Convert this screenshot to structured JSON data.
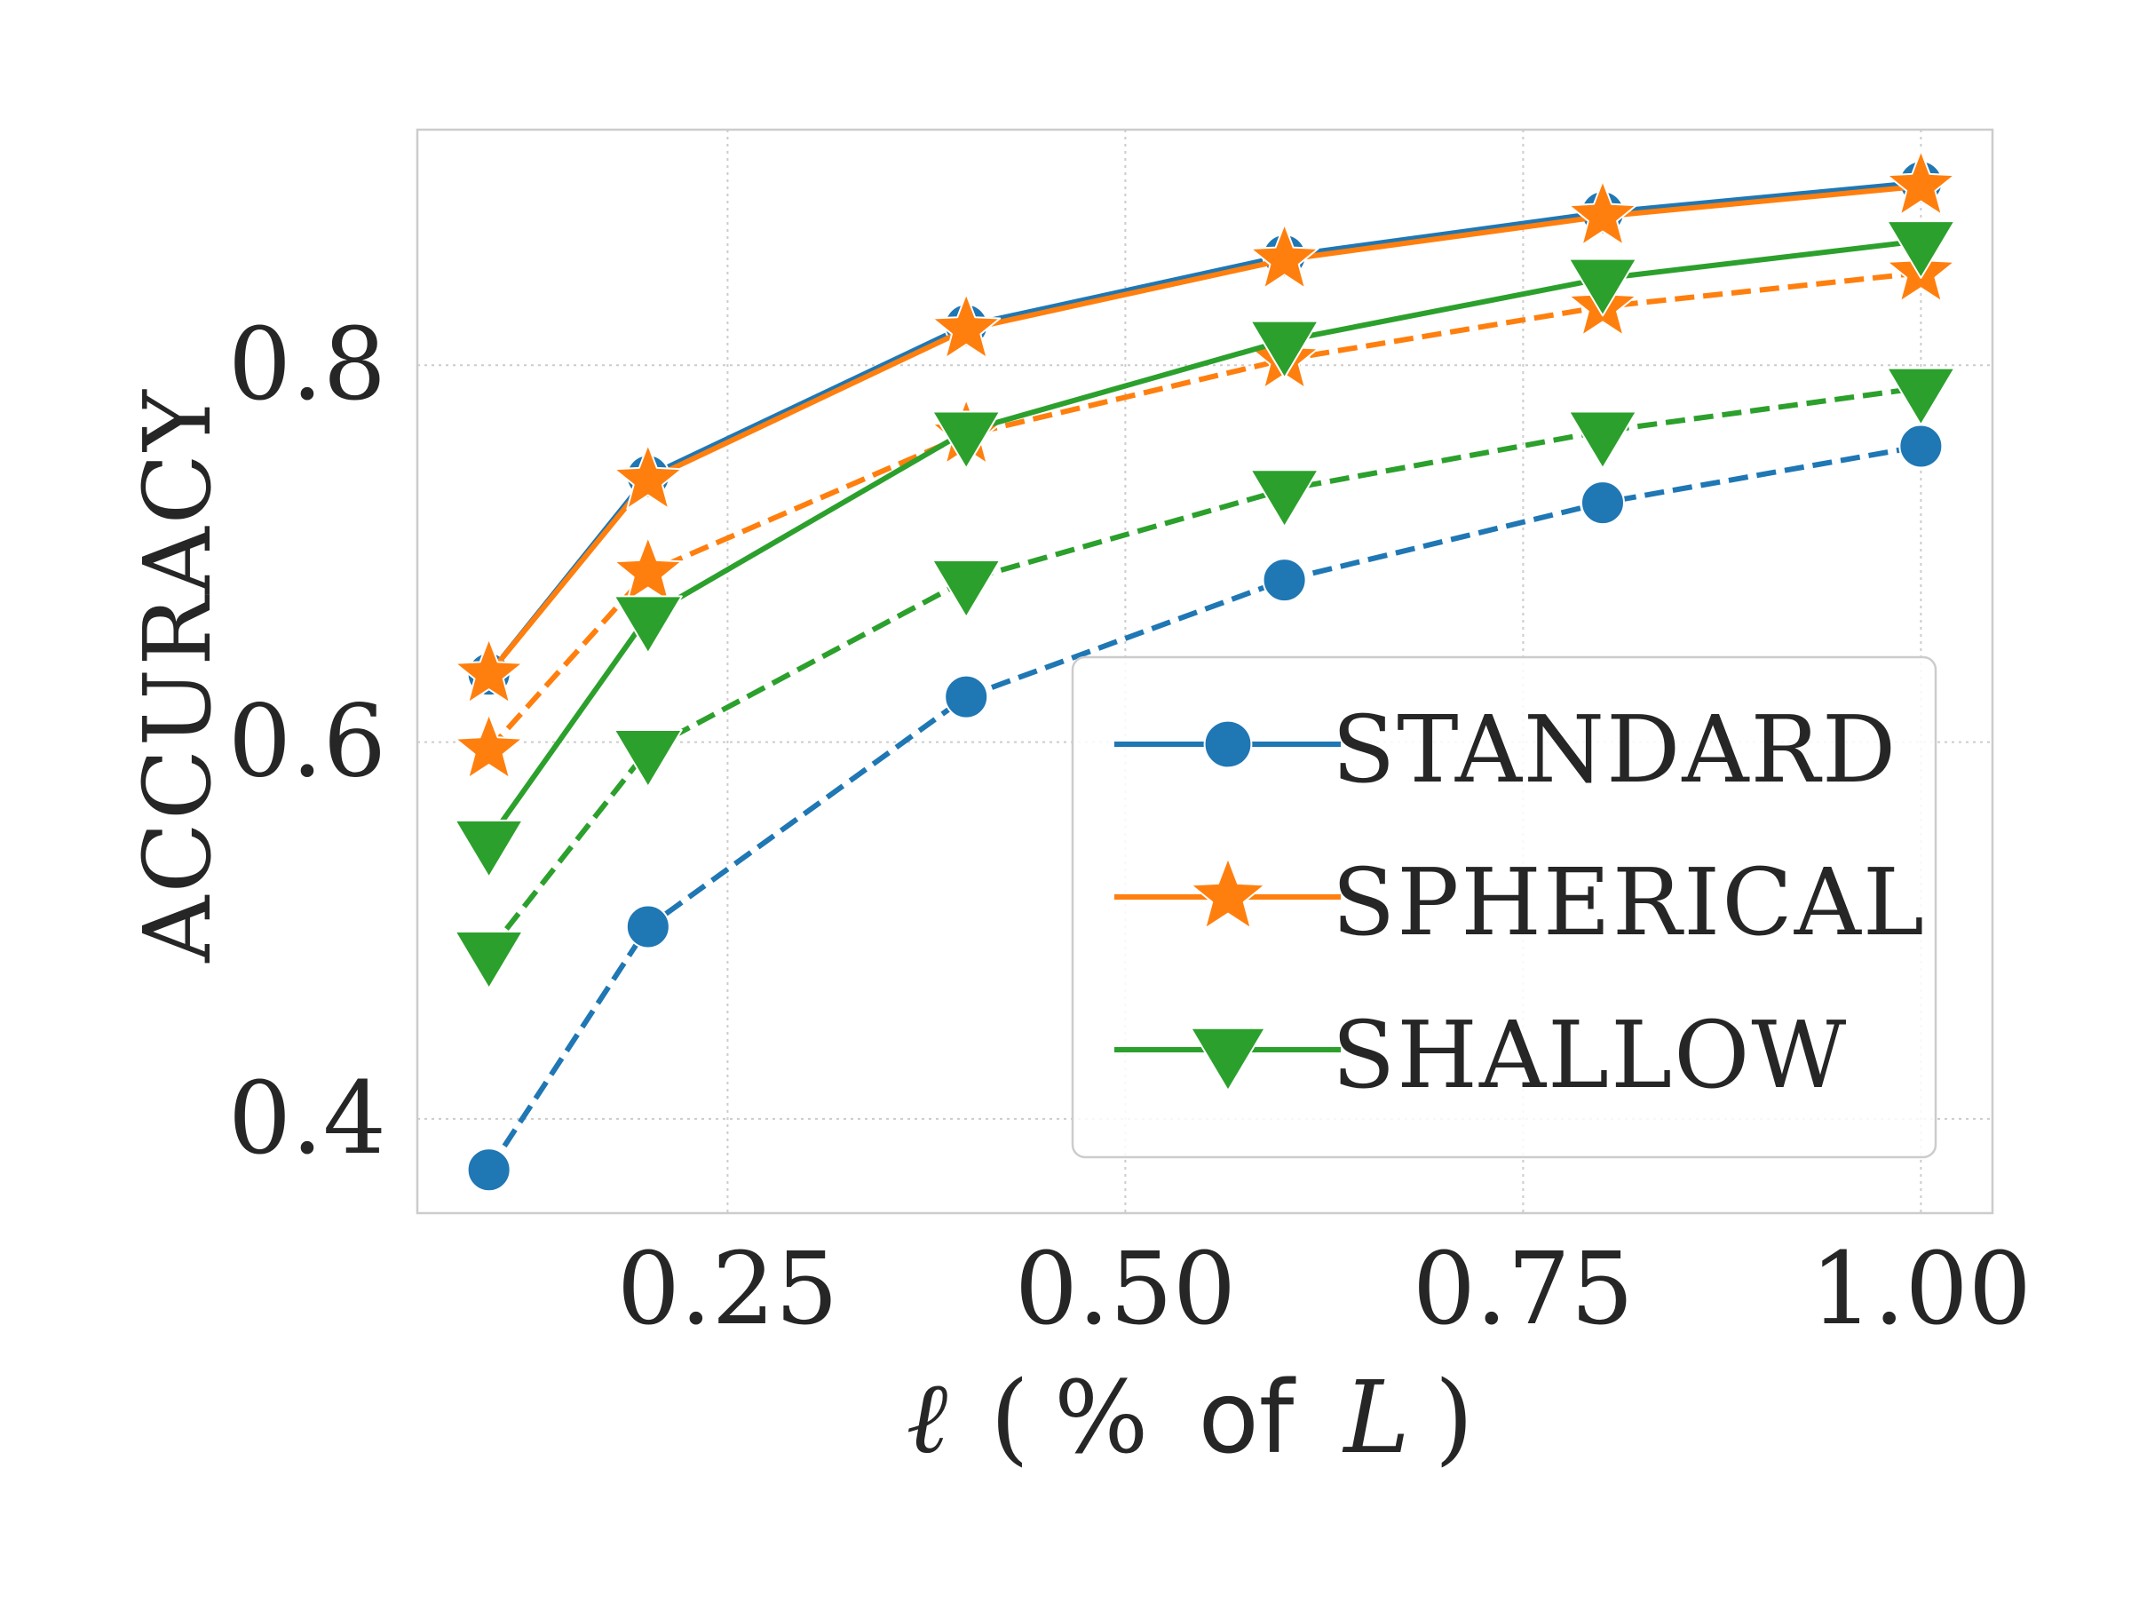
{
  "chart_data": {
    "type": "line",
    "title": "",
    "xlabel": "ℓ (% of L)",
    "xlabel_parts": {
      "symbol": "ℓ",
      "open": "(",
      "percent": "%",
      "of": "of",
      "L": "L",
      "close": ")"
    },
    "ylabel": "ACCURACY",
    "xlim": [
      0.055,
      1.045
    ],
    "ylim": [
      0.35,
      0.925
    ],
    "xticks": [
      0.25,
      0.5,
      0.75,
      1.0
    ],
    "xtick_labels": [
      "0.25",
      "0.50",
      "0.75",
      "1.00"
    ],
    "yticks": [
      0.4,
      0.6,
      0.8
    ],
    "ytick_labels": [
      "0.4",
      "0.6",
      "0.8"
    ],
    "grid": true,
    "legend_position": "lower-right",
    "x": [
      0.1,
      0.2,
      0.4,
      0.6,
      0.8,
      1.0
    ],
    "series": [
      {
        "name": "Standard",
        "legend_label": "STANDARD",
        "color": "#1f77b4",
        "marker": "circle",
        "linestyle": "solid",
        "values": [
          0.636,
          0.741,
          0.821,
          0.858,
          0.881,
          0.897
        ]
      },
      {
        "name": "Spherical",
        "legend_label": "SPHERICAL",
        "color": "#ff7f0e",
        "marker": "star",
        "linestyle": "solid",
        "values": [
          0.636,
          0.739,
          0.819,
          0.856,
          0.879,
          0.895
        ]
      },
      {
        "name": "Shallow",
        "legend_label": "SHALLOW",
        "color": "#2ca02c",
        "marker": "triangle-down",
        "linestyle": "solid",
        "values": [
          0.548,
          0.667,
          0.765,
          0.813,
          0.846,
          0.866
        ]
      },
      {
        "name": "Standard (dashed)",
        "color": "#1f77b4",
        "marker": "circle",
        "linestyle": "dashed",
        "values": [
          0.373,
          0.502,
          0.624,
          0.686,
          0.727,
          0.757
        ]
      },
      {
        "name": "Spherical (dashed)",
        "color": "#ff7f0e",
        "marker": "star",
        "linestyle": "dashed",
        "values": [
          0.596,
          0.69,
          0.763,
          0.803,
          0.831,
          0.849
        ]
      },
      {
        "name": "Shallow (dashed)",
        "color": "#2ca02c",
        "marker": "triangle-down",
        "linestyle": "dashed",
        "values": [
          0.489,
          0.596,
          0.686,
          0.734,
          0.765,
          0.788
        ]
      }
    ]
  }
}
